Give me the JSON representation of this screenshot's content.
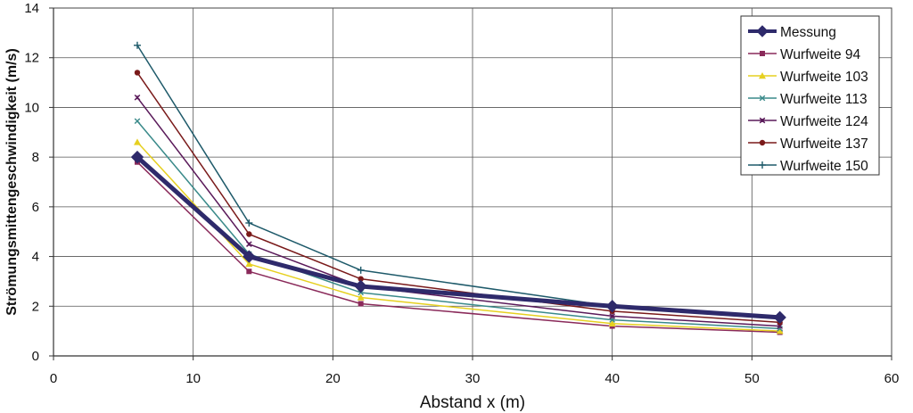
{
  "chart_data": {
    "type": "line",
    "title": "",
    "xlabel": "Abstand x (m)",
    "ylabel": "Strömungsmittengeschwindigkeit (m/s)",
    "xlim": [
      0,
      60
    ],
    "ylim": [
      0,
      14
    ],
    "xticks": [
      "0",
      "10",
      "20",
      "30",
      "40",
      "50",
      "60"
    ],
    "yticks": [
      "0",
      "2",
      "4",
      "6",
      "8",
      "10",
      "12",
      "14"
    ],
    "grid": true,
    "legend_position": "top-right",
    "x": [
      6,
      14,
      22,
      40,
      52
    ],
    "series": [
      {
        "name": "Messung",
        "values": [
          8.0,
          4.0,
          2.8,
          2.0,
          1.55
        ],
        "color": "#2e2a6b",
        "marker": "diamond"
      },
      {
        "name": "Wurfweite 94",
        "values": [
          7.8,
          3.4,
          2.1,
          1.2,
          0.95
        ],
        "color": "#8a2a5a",
        "marker": "square"
      },
      {
        "name": "Wurfweite 103",
        "values": [
          8.6,
          3.7,
          2.35,
          1.3,
          1.0
        ],
        "color": "#e6d020",
        "marker": "triangle"
      },
      {
        "name": "Wurfweite 113",
        "values": [
          9.45,
          4.1,
          2.55,
          1.45,
          1.1
        ],
        "color": "#3a8a8a",
        "marker": "x"
      },
      {
        "name": "Wurfweite 124",
        "values": [
          10.4,
          4.5,
          2.8,
          1.6,
          1.2
        ],
        "color": "#5a1a5a",
        "marker": "star"
      },
      {
        "name": "Wurfweite 137",
        "values": [
          11.4,
          4.9,
          3.1,
          1.8,
          1.35
        ],
        "color": "#7a1a1a",
        "marker": "circle"
      },
      {
        "name": "Wurfweite 150",
        "values": [
          12.5,
          5.35,
          3.45,
          2.0,
          1.5
        ],
        "color": "#1e5a6a",
        "marker": "plus"
      }
    ]
  }
}
